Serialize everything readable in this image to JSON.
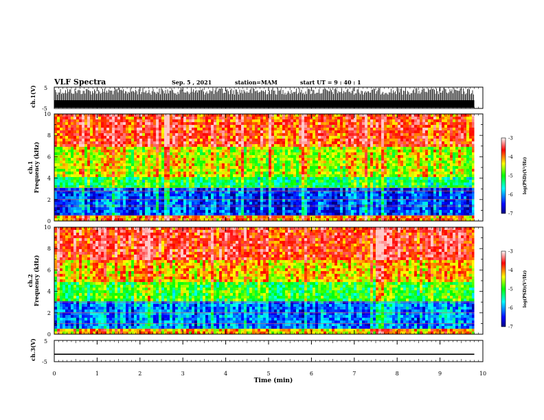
{
  "header": {
    "title": "VLF Spectra",
    "date": "Sep. 5 , 2021",
    "station": "station=MAM",
    "start": "start UT =  9 : 40 : 1"
  },
  "chart_data": [
    {
      "type": "line",
      "name": "ch1_waveform",
      "ylabel": "ch.1(V)",
      "ylim": [
        -5,
        5
      ],
      "y_ticks": [
        "5",
        "-5"
      ],
      "description_level": "saturated",
      "xlim": [
        0,
        10
      ]
    },
    {
      "type": "heatmap",
      "name": "ch1_spectrogram",
      "ylabel_line1": "ch.1",
      "ylabel_line2": "Frequency (kHz)",
      "ylim": [
        0,
        10
      ],
      "y_ticks": [
        "0",
        "2",
        "4",
        "6",
        "8",
        "10"
      ],
      "xlim": [
        0,
        10
      ],
      "colorbar": {
        "label": "log(PSD)(V²/Hz)",
        "range": [
          -7,
          -3
        ],
        "ticks": [
          "-3",
          "-4",
          "-5",
          "-6",
          "-7"
        ]
      },
      "bands_kHz": [
        {
          "from": 0,
          "to": 0.5,
          "level": -4.0
        },
        {
          "from": 0.5,
          "to": 3.0,
          "level": -6.3
        },
        {
          "from": 3.0,
          "to": 4.2,
          "level": -5.2
        },
        {
          "from": 4.2,
          "to": 7.0,
          "level": -4.5
        },
        {
          "from": 7.0,
          "to": 10.0,
          "level": -3.7
        }
      ],
      "lines_kHz": [
        0.5,
        1.4,
        2.0,
        2.8,
        3.1
      ]
    },
    {
      "type": "heatmap",
      "name": "ch2_spectrogram",
      "ylabel_line1": "ch.2",
      "ylabel_line2": "Frequency (kHz)",
      "ylim": [
        0,
        10
      ],
      "y_ticks": [
        "0",
        "2",
        "4",
        "6",
        "8",
        "10"
      ],
      "xlim": [
        0,
        10
      ],
      "colorbar": {
        "label": "log(PSD)(V²/Hz)",
        "range": [
          -7,
          -3
        ],
        "ticks": [
          "-3",
          "-4",
          "-5",
          "-6",
          "-7"
        ]
      },
      "bands_kHz": [
        {
          "from": 0,
          "to": 0.4,
          "level": -4.2
        },
        {
          "from": 0.4,
          "to": 3.2,
          "level": -6.1
        },
        {
          "from": 3.2,
          "to": 5.0,
          "level": -5.0
        },
        {
          "from": 5.0,
          "to": 7.0,
          "level": -4.2
        },
        {
          "from": 7.0,
          "to": 10.0,
          "level": -3.6
        }
      ],
      "lines_kHz": [
        1.0,
        2.0,
        3.0
      ]
    },
    {
      "type": "line",
      "name": "ch3_waveform",
      "ylabel": "ch.3(V)",
      "ylim": [
        -5,
        5
      ],
      "y_ticks": [
        "5",
        "-5"
      ],
      "level": -1.5,
      "xlim": [
        0,
        10
      ]
    }
  ],
  "xaxis": {
    "label": "Time (min)",
    "ticks": [
      "0",
      "1",
      "2",
      "3",
      "4",
      "5",
      "6",
      "7",
      "8",
      "9",
      "10"
    ],
    "data_end": 9.8
  }
}
